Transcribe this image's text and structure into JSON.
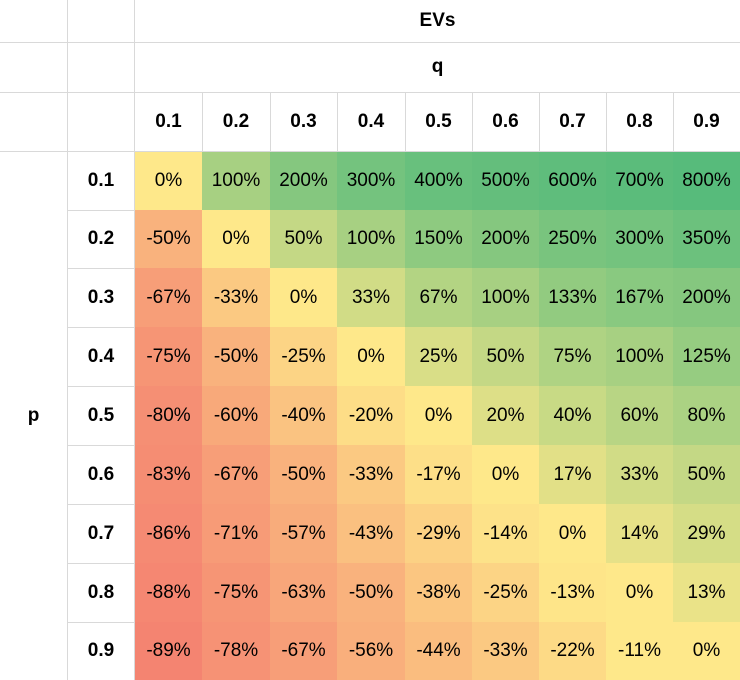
{
  "chart_data": {
    "type": "heatmap",
    "title": "EVs",
    "xlabel": "q",
    "ylabel": "p",
    "x": [
      "0.1",
      "0.2",
      "0.3",
      "0.4",
      "0.5",
      "0.6",
      "0.7",
      "0.8",
      "0.9"
    ],
    "y": [
      "0.1",
      "0.2",
      "0.3",
      "0.4",
      "0.5",
      "0.6",
      "0.7",
      "0.8",
      "0.9"
    ],
    "values": [
      [
        "0%",
        "100%",
        "200%",
        "300%",
        "400%",
        "500%",
        "600%",
        "700%",
        "800%"
      ],
      [
        "-50%",
        "0%",
        "50%",
        "100%",
        "150%",
        "200%",
        "250%",
        "300%",
        "350%"
      ],
      [
        "-67%",
        "-33%",
        "0%",
        "33%",
        "67%",
        "100%",
        "133%",
        "167%",
        "200%"
      ],
      [
        "-75%",
        "-50%",
        "-25%",
        "0%",
        "25%",
        "50%",
        "75%",
        "100%",
        "125%"
      ],
      [
        "-80%",
        "-60%",
        "-40%",
        "-20%",
        "0%",
        "20%",
        "40%",
        "60%",
        "80%"
      ],
      [
        "-83%",
        "-67%",
        "-50%",
        "-33%",
        "-17%",
        "0%",
        "17%",
        "33%",
        "50%"
      ],
      [
        "-86%",
        "-71%",
        "-57%",
        "-43%",
        "-29%",
        "-14%",
        "0%",
        "14%",
        "29%"
      ],
      [
        "-88%",
        "-75%",
        "-63%",
        "-50%",
        "-38%",
        "-25%",
        "-13%",
        "0%",
        "13%"
      ],
      [
        "-89%",
        "-78%",
        "-67%",
        "-56%",
        "-44%",
        "-33%",
        "-22%",
        "-11%",
        "0%"
      ]
    ],
    "colors": {
      "min": "#f26b6b",
      "mid": "#fee88a",
      "max": "#57bb7b"
    }
  }
}
